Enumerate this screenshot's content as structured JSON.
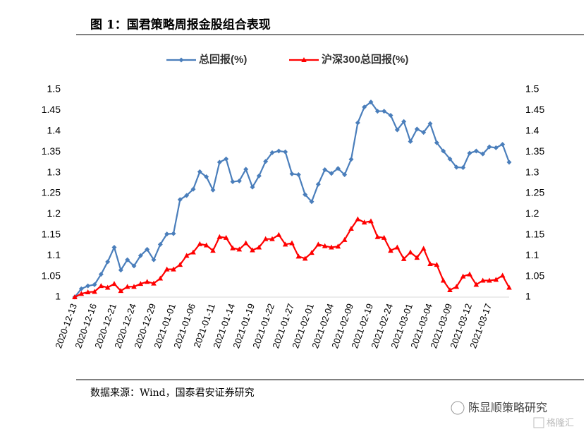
{
  "title": "图 1：国君策略周报金股组合表现",
  "source": "数据来源：Wind，国泰君安证券研究",
  "watermark": {
    "account": "陈显顺策略研究",
    "brand": "格隆汇"
  },
  "chart_data": {
    "type": "line",
    "categories": [
      "2020-12-13",
      null,
      null,
      "2020-12-16",
      null,
      null,
      "2020-12-21",
      null,
      null,
      "2020-12-24",
      null,
      null,
      "2020-12-29",
      null,
      null,
      "2021-01-01",
      null,
      null,
      "2021-01-06",
      null,
      null,
      "2021-01-11",
      null,
      null,
      "2021-01-14",
      null,
      null,
      "2021-01-19",
      null,
      null,
      "2021-01-22",
      null,
      null,
      "2021-01-27",
      null,
      null,
      "2021-02-01",
      null,
      null,
      "2021-02-04",
      null,
      null,
      "2021-02-09",
      null,
      null,
      "2021-02-19",
      null,
      null,
      "2021-02-24",
      null,
      null,
      "2021-03-01",
      null,
      null,
      "2021-03-04",
      null,
      null,
      "2021-03-09",
      null,
      null,
      "2021-03-12",
      null,
      null,
      "2021-03-17",
      null,
      null,
      null
    ],
    "series": [
      {
        "name": "总回报(%)",
        "color": "#4a7ebb",
        "marker": "diamond",
        "values": [
          1.0,
          1.02,
          1.027,
          1.03,
          1.055,
          1.085,
          1.12,
          1.065,
          1.09,
          1.075,
          1.1,
          1.115,
          1.09,
          1.127,
          1.152,
          1.153,
          1.235,
          1.245,
          1.26,
          1.302,
          1.29,
          1.258,
          1.325,
          1.333,
          1.278,
          1.28,
          1.308,
          1.265,
          1.292,
          1.327,
          1.348,
          1.352,
          1.35,
          1.297,
          1.295,
          1.247,
          1.23,
          1.272,
          1.307,
          1.298,
          1.31,
          1.295,
          1.332,
          1.42,
          1.458,
          1.47,
          1.448,
          1.448,
          1.438,
          1.403,
          1.423,
          1.375,
          1.405,
          1.397,
          1.418,
          1.372,
          1.352,
          1.333,
          1.313,
          1.312,
          1.347,
          1.352,
          1.345,
          1.362,
          1.36,
          1.368,
          1.325
        ]
      },
      {
        "name": "沪深300总回报(%)",
        "color": "#ff0000",
        "marker": "triangle",
        "values": [
          1.0,
          1.008,
          1.012,
          1.013,
          1.027,
          1.023,
          1.032,
          1.015,
          1.025,
          1.025,
          1.032,
          1.037,
          1.033,
          1.045,
          1.067,
          1.067,
          1.078,
          1.1,
          1.108,
          1.128,
          1.125,
          1.112,
          1.145,
          1.143,
          1.118,
          1.115,
          1.13,
          1.113,
          1.12,
          1.14,
          1.14,
          1.15,
          1.127,
          1.13,
          1.098,
          1.093,
          1.107,
          1.127,
          1.123,
          1.12,
          1.122,
          1.138,
          1.165,
          1.188,
          1.18,
          1.183,
          1.145,
          1.143,
          1.112,
          1.12,
          1.092,
          1.108,
          1.095,
          1.117,
          1.08,
          1.078,
          1.04,
          1.017,
          1.025,
          1.05,
          1.055,
          1.03,
          1.04,
          1.04,
          1.042,
          1.052,
          1.023
        ]
      }
    ],
    "ylim": [
      1,
      1.5
    ],
    "yticks": [
      1,
      1.05,
      1.1,
      1.15,
      1.2,
      1.25,
      1.3,
      1.35,
      1.4,
      1.45,
      1.5
    ],
    "y2lim": [
      1,
      1.5
    ],
    "y2ticks": [
      1,
      1.05,
      1.1,
      1.15,
      1.2,
      1.25,
      1.3,
      1.35,
      1.4,
      1.45,
      1.5
    ],
    "grid": false,
    "legend": "top"
  }
}
